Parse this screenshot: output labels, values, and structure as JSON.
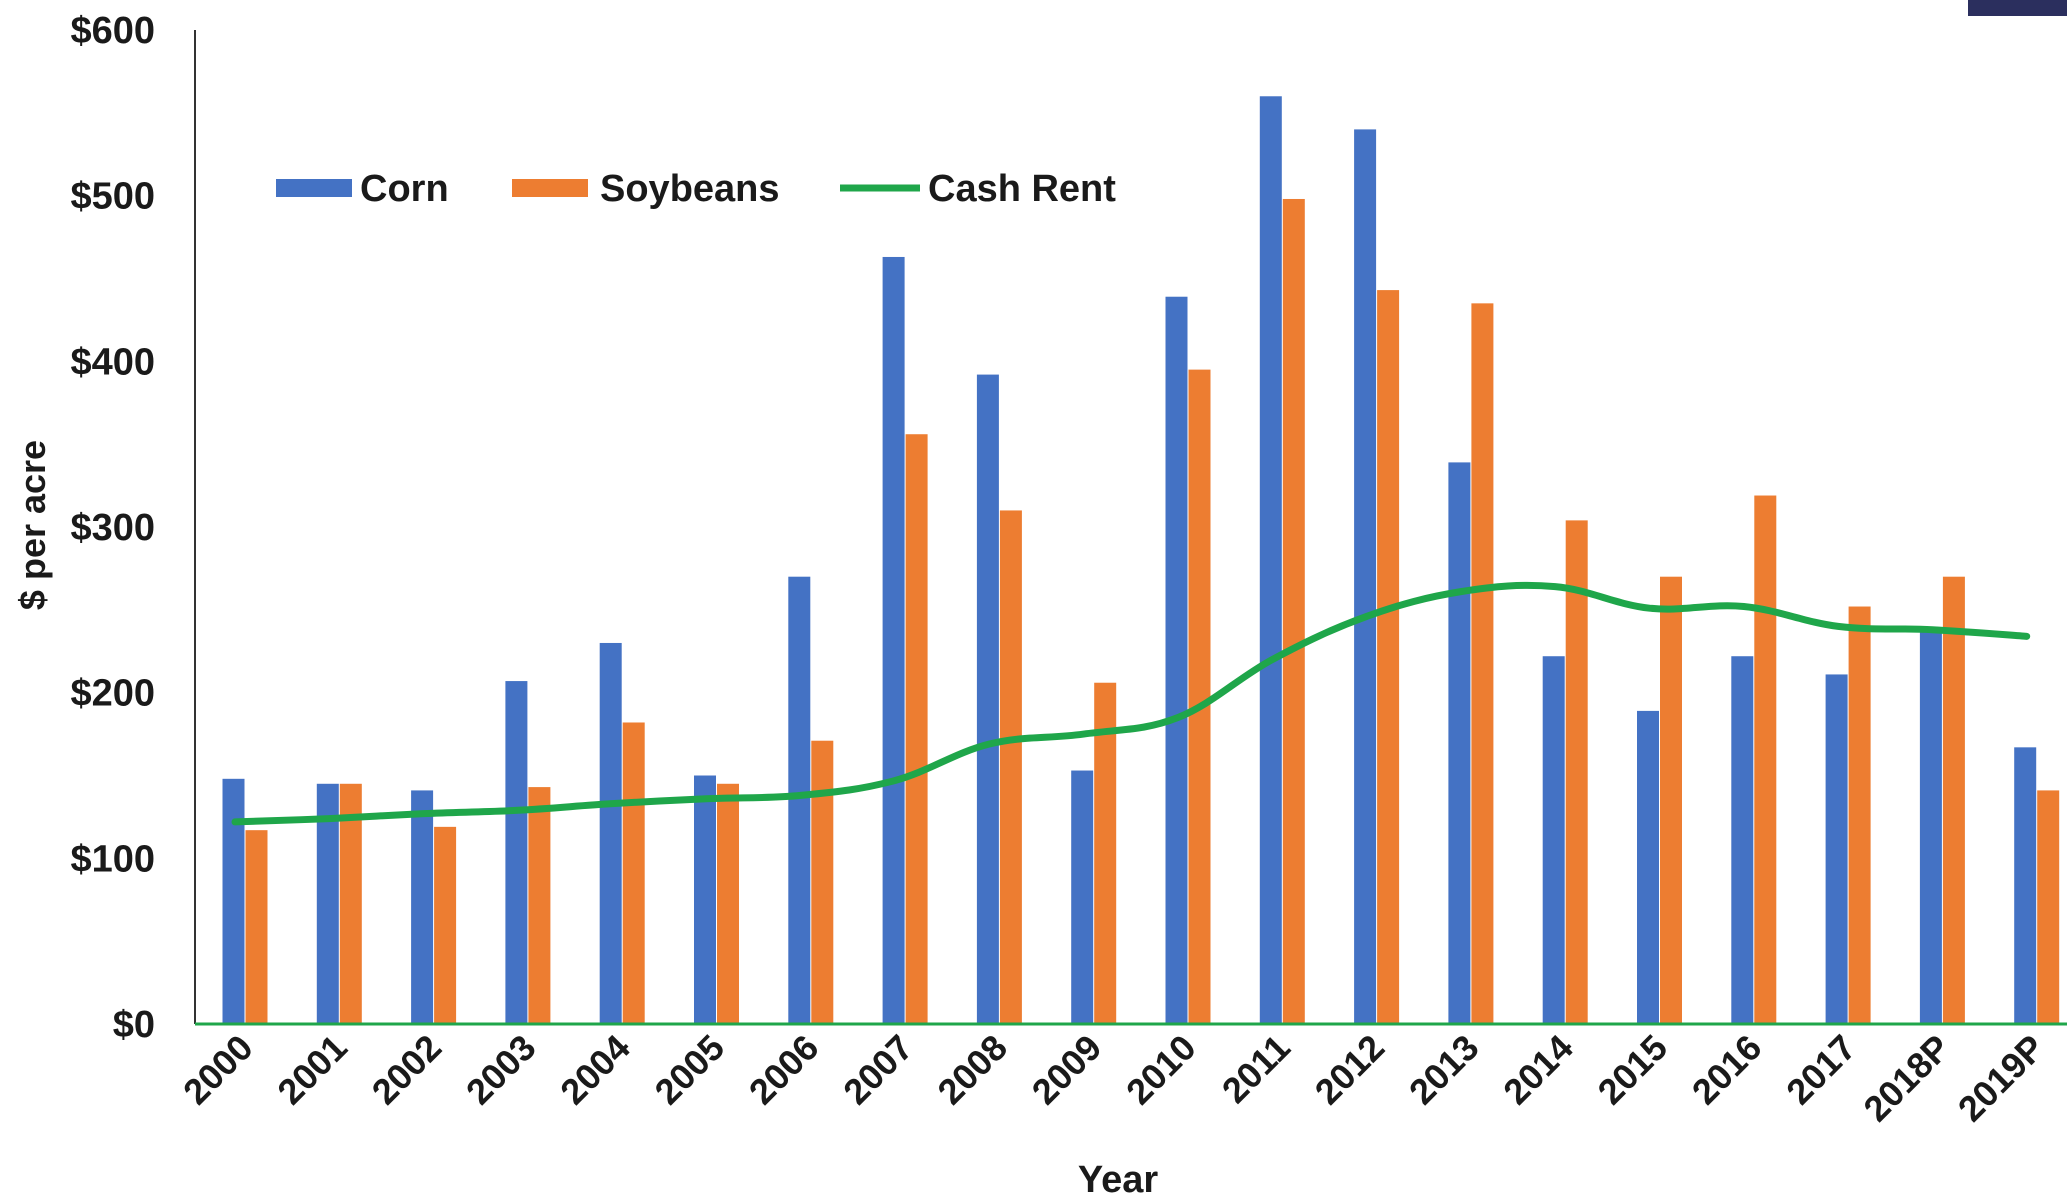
{
  "chart_data": {
    "type": "bar",
    "title": "",
    "xlabel": "Year",
    "ylabel": "$ per acre",
    "ylim": [
      0,
      600
    ],
    "yticks": [
      0,
      100,
      200,
      300,
      400,
      500,
      600
    ],
    "ytick_labels": [
      "$0",
      "$100",
      "$200",
      "$300",
      "$400",
      "$500",
      "$600"
    ],
    "grid": false,
    "legend_position": "top-left",
    "categories": [
      "2000",
      "2001",
      "2002",
      "2003",
      "2004",
      "2005",
      "2006",
      "2007",
      "2008",
      "2009",
      "2010",
      "2011",
      "2012",
      "2013",
      "2014",
      "2015",
      "2016",
      "2017",
      "2018P",
      "2019P"
    ],
    "series": [
      {
        "name": "Corn",
        "type": "bar",
        "color": "#4472c4",
        "values": [
          148,
          145,
          141,
          207,
          230,
          150,
          270,
          463,
          392,
          153,
          439,
          560,
          540,
          339,
          222,
          189,
          222,
          211,
          238,
          167
        ]
      },
      {
        "name": "Soybeans",
        "type": "bar",
        "color": "#ed7d31",
        "values": [
          117,
          145,
          119,
          143,
          182,
          145,
          171,
          356,
          310,
          206,
          395,
          498,
          443,
          435,
          304,
          270,
          319,
          252,
          270,
          141
        ]
      },
      {
        "name": "Cash Rent",
        "type": "line",
        "color": "#1fa64a",
        "values": [
          122,
          124,
          127,
          129,
          133,
          136,
          138,
          147,
          169,
          175,
          185,
          220,
          246,
          261,
          264,
          251,
          252,
          240,
          238,
          234
        ]
      }
    ]
  },
  "colors": {
    "axis": "#1fa64a",
    "corner_tab": "#2b2f5e"
  }
}
